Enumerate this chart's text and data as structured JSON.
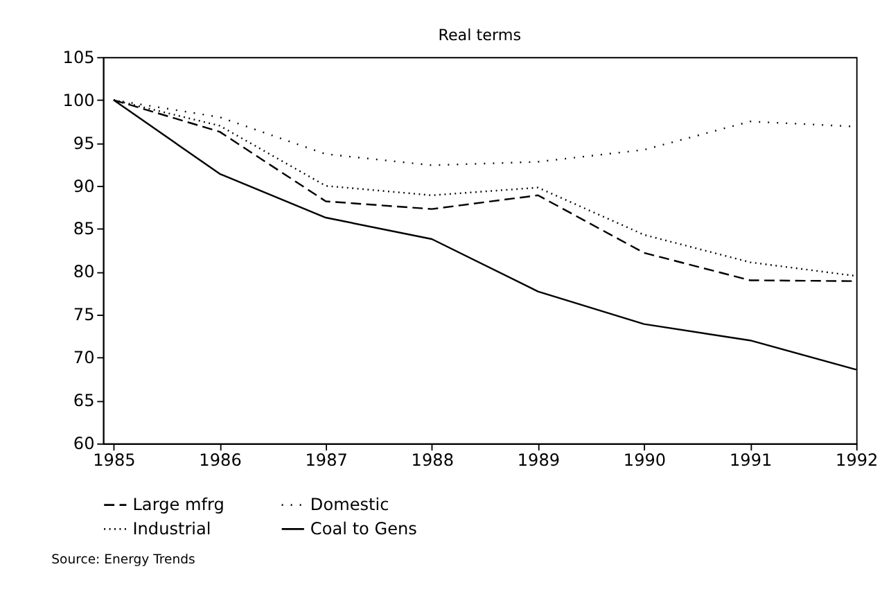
{
  "chart_data": {
    "type": "line",
    "title": "Real terms",
    "x": [
      1985,
      1986,
      1987,
      1988,
      1989,
      1990,
      1991,
      1992
    ],
    "series": [
      {
        "name": "Large mfrg",
        "color": "#000000",
        "line_style": "dashed",
        "values": [
          100,
          96.3,
          88.2,
          87.3,
          88.9,
          82.2,
          79.0,
          78.9
        ]
      },
      {
        "name": "Domestic",
        "color": "#000000",
        "line_style": "dotted",
        "values": [
          100,
          98.0,
          93.7,
          92.4,
          92.8,
          94.2,
          97.5,
          96.9
        ]
      },
      {
        "name": "Industrial",
        "color": "#000000",
        "line_style": "dotted",
        "values": [
          100,
          97.0,
          90.0,
          88.9,
          89.8,
          84.3,
          81.1,
          79.5
        ]
      },
      {
        "name": "Coal to Gens",
        "color": "#000000",
        "line_style": "solid",
        "values": [
          100,
          91.4,
          86.3,
          83.8,
          77.7,
          73.9,
          72.0,
          68.6
        ]
      }
    ],
    "xlim": [
      1984.9,
      1992
    ],
    "xticks": [
      1985,
      1986,
      1987,
      1988,
      1989,
      1990,
      1991,
      1992
    ],
    "ylim": [
      60,
      105
    ],
    "yticks": [
      60,
      65,
      70,
      75,
      80,
      85,
      90,
      95,
      100,
      105
    ],
    "grid": false,
    "legend": "bottom",
    "marker": "none",
    "annotations": [
      "Source: Energy Trends"
    ]
  }
}
